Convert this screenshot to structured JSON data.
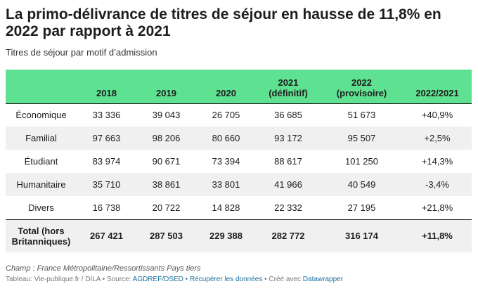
{
  "title": "La primo-délivrance de titres de séjour en hausse de 11,8% en 2022 par rapport à 2021",
  "subtitle": "Titres de séjour par motif d’admission",
  "table": {
    "headers": [
      "",
      "2018",
      "2019",
      "2020",
      "2021\n(définitif)",
      "2022\n(provisoire)",
      "2022/2021"
    ],
    "rows": [
      [
        "Économique",
        "33 336",
        "39 043",
        "26 705",
        "36 685",
        "51 673",
        "+40,9%"
      ],
      [
        "Familial",
        "97 663",
        "98 206",
        "80 660",
        "93 172",
        "95 507",
        "+2,5%"
      ],
      [
        "Étudiant",
        "83 974",
        "90 671",
        "73 394",
        "88 617",
        "101 250",
        "+14,3%"
      ],
      [
        "Humanitaire",
        "35 710",
        "38 861",
        "33 801",
        "41 966",
        "40 549",
        "-3,4%"
      ],
      [
        "Divers",
        "16 738",
        "20 722",
        "14 828",
        "22 332",
        "27 195",
        "+21,8%"
      ]
    ],
    "total": [
      "Total (hors\nBritanniques)",
      "267 421",
      "287 503",
      "229 388",
      "282 772",
      "316 174",
      "+11,8%"
    ]
  },
  "notes": "Champ : France Métropolitaine/Ressortissants Pays tiers",
  "footer": {
    "prefix": "Tableau: Vie-publique.fr / DILA • Source: ",
    "source_link": "AGDREF/DSED",
    "sep1": " • ",
    "data_link": "Récupérer les données",
    "sep2": " • Créé avec ",
    "tool_link": "Datawrapper"
  },
  "colors": {
    "header_bg": "#5ee291",
    "stripe": "#f0f0f0",
    "link": "#1a6f9e"
  }
}
